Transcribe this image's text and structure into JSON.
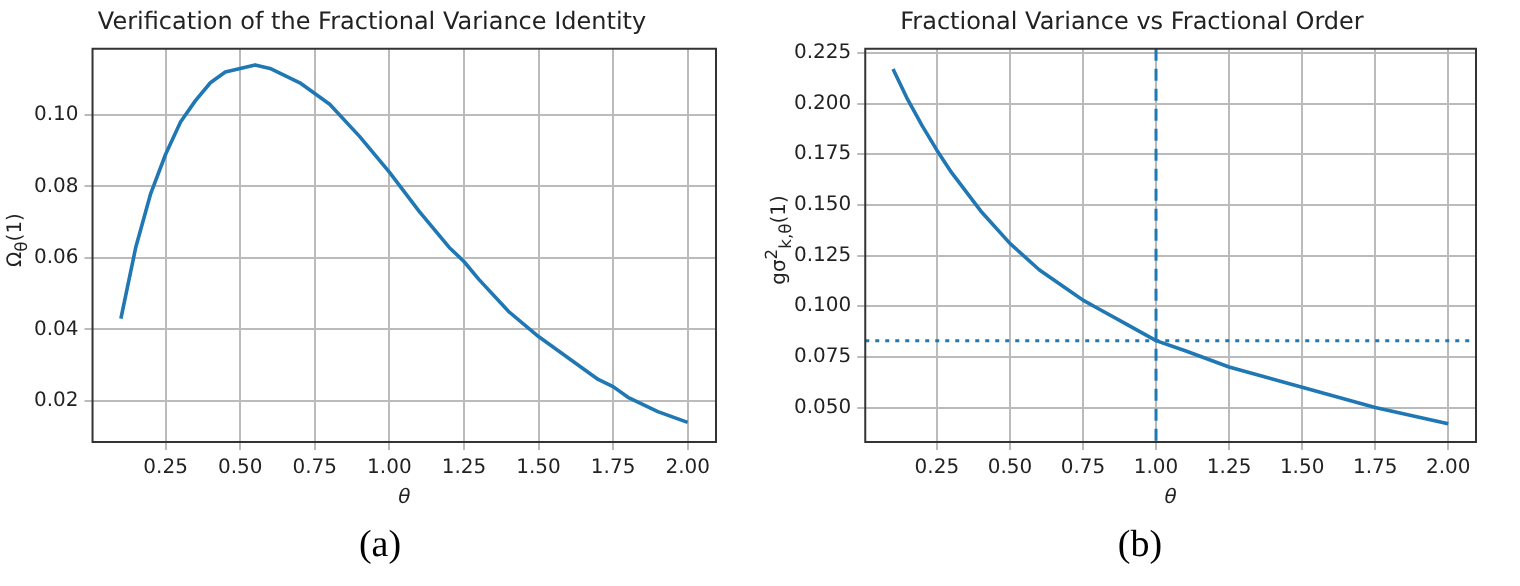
{
  "chart_data": [
    {
      "type": "line",
      "title": "Verification of the Fractional Variance Identity",
      "xlabel": "θ",
      "ylabel": "Ω$_{θ}$(1)",
      "x": [
        0.1,
        0.15,
        0.2,
        0.25,
        0.3,
        0.35,
        0.4,
        0.45,
        0.5,
        0.55,
        0.6,
        0.7,
        0.75,
        0.8,
        0.9,
        1.0,
        1.1,
        1.2,
        1.25,
        1.3,
        1.4,
        1.5,
        1.6,
        1.7,
        1.75,
        1.8,
        1.9,
        2.0
      ],
      "series": [
        {
          "color": "#1f77b4",
          "values": [
            0.043,
            0.063,
            0.078,
            0.089,
            0.098,
            0.104,
            0.109,
            0.112,
            0.113,
            0.114,
            0.113,
            0.109,
            0.106,
            0.103,
            0.094,
            0.084,
            0.073,
            0.063,
            0.059,
            0.054,
            0.045,
            0.038,
            0.032,
            0.026,
            0.024,
            0.021,
            0.017,
            0.014
          ]
        }
      ],
      "xlim": [
        0.005,
        2.095
      ],
      "xticks": [
        0.25,
        {
          "value": 0.5,
          "label": "0.50"
        },
        0.75,
        {
          "value": 1,
          "label": "1.00"
        },
        1.25,
        {
          "value": 1.5,
          "label": "1.50"
        },
        1.75,
        {
          "value": 2,
          "label": "2.00"
        }
      ],
      "ylim": [
        0.0085,
        0.1185
      ],
      "yticks": [
        0.02,
        0.04,
        0.06,
        0.08,
        {
          "value": 0.1,
          "label": "0.10"
        }
      ],
      "grid": true,
      "legend": false,
      "marker": "none",
      "line_style": "solid",
      "annotations": [
        "(a)"
      ]
    },
    {
      "type": "line",
      "title": "Fractional Variance vs Fractional Order",
      "xlabel": "θ",
      "ylabel": "gσ$^{2}$$_{k,θ}$(1)",
      "x": [
        0.1,
        0.15,
        0.2,
        0.25,
        0.3,
        0.4,
        0.5,
        0.6,
        0.7,
        0.75,
        0.8,
        0.9,
        1.0,
        1.1,
        1.25,
        1.5,
        1.75,
        2.0
      ],
      "series": [
        {
          "color": "#1f77b4",
          "values": [
            0.217,
            0.202,
            0.189,
            0.177,
            0.166,
            0.147,
            0.131,
            0.118,
            0.108,
            0.103,
            0.099,
            0.091,
            0.083,
            0.078,
            0.07,
            0.06,
            0.05,
            0.042
          ]
        }
      ],
      "xlim": [
        0.005,
        2.095
      ],
      "xticks": [
        0.25,
        {
          "value": 0.5,
          "label": "0.50"
        },
        0.75,
        {
          "value": 1,
          "label": "1.00"
        },
        1.25,
        {
          "value": 1.5,
          "label": "1.50"
        },
        1.75,
        {
          "value": 2,
          "label": "2.00"
        }
      ],
      "ylim": [
        0.033,
        0.227
      ],
      "yticks": [
        {
          "value": 0.05,
          "label": "0.050"
        },
        0.075,
        {
          "value": 0.1,
          "label": "0.100"
        },
        0.125,
        {
          "value": 0.15,
          "label": "0.150"
        },
        0.175,
        {
          "value": 0.2,
          "label": "0.200"
        },
        0.225
      ],
      "ref_lines": [
        {
          "axis": "x",
          "value": 1,
          "color": "#1f77b4",
          "line_style": "dashed"
        },
        {
          "axis": "y",
          "value": 0.083,
          "color": "#1f77b4",
          "line_style": "dotted"
        }
      ],
      "grid": true,
      "legend": false,
      "marker": "none",
      "line_style": "solid",
      "annotations": [
        "(b)"
      ]
    }
  ]
}
